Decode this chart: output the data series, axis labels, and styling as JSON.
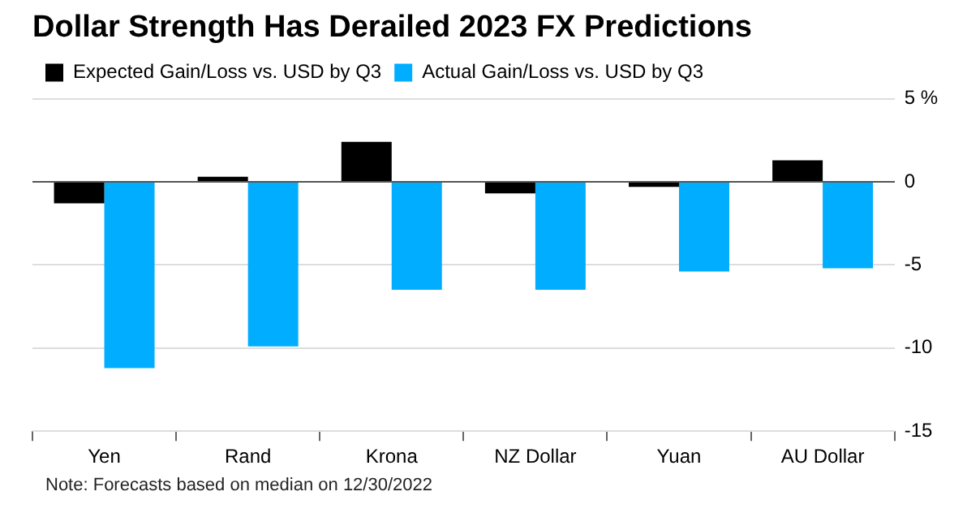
{
  "chart_data": {
    "type": "bar",
    "title": "Dollar Strength Has Derailed 2023 FX Predictions",
    "categories": [
      "Yen",
      "Rand",
      "Krona",
      "NZ Dollar",
      "Yuan",
      "AU Dollar"
    ],
    "series": [
      {
        "name": "Expected Gain/Loss vs. USD by Q3",
        "color": "#000000",
        "values": [
          -1.3,
          0.3,
          2.4,
          -0.7,
          -0.3,
          1.3
        ]
      },
      {
        "name": "Actual Gain/Loss vs. USD by Q3",
        "color": "#00adff",
        "values": [
          -11.2,
          -9.9,
          -6.5,
          -6.5,
          -5.4,
          -5.2
        ]
      }
    ],
    "ylim": [
      -15,
      5
    ],
    "yticks": [
      {
        "value": 5,
        "label": "5 %"
      },
      0,
      -5,
      -10,
      -15
    ],
    "grid": "y",
    "legend": "top left",
    "annotations": [
      "Note: Forecasts based on median on 12/30/2022"
    ]
  }
}
